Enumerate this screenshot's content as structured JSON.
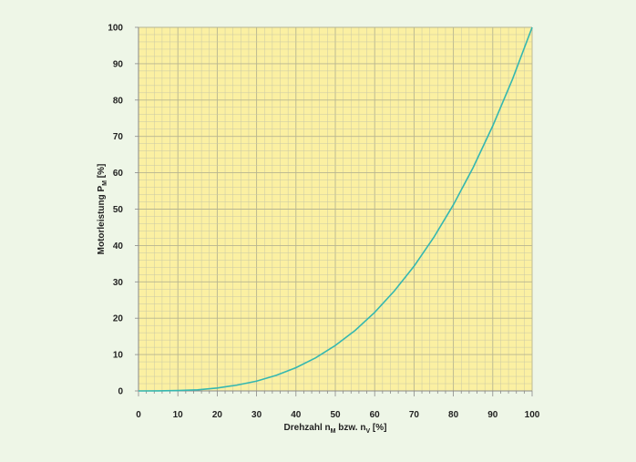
{
  "chart_data": {
    "type": "line",
    "title": "",
    "xlabel": {
      "main": "Drehzahl n",
      "sub1": "M",
      "mid": " bzw. n",
      "sub2": "V",
      "end": " [%]"
    },
    "ylabel": {
      "main": "Motorleistung P",
      "sub": "M",
      "end": " [%]"
    },
    "xlim": [
      0,
      100
    ],
    "ylim": [
      0,
      100
    ],
    "xticks": [
      0,
      10,
      20,
      30,
      40,
      50,
      60,
      70,
      80,
      90,
      100
    ],
    "yticks": [
      0,
      10,
      20,
      30,
      40,
      50,
      60,
      70,
      80,
      90,
      100
    ],
    "grid": true,
    "series": [
      {
        "x": [
          0,
          5,
          10,
          15,
          20,
          25,
          30,
          35,
          40,
          45,
          50,
          55,
          60,
          65,
          70,
          75,
          80,
          85,
          90,
          95,
          100
        ],
        "y": [
          0,
          0.01,
          0.1,
          0.3,
          0.8,
          1.6,
          2.7,
          4.3,
          6.4,
          9.1,
          12.5,
          16.6,
          21.6,
          27.5,
          34.3,
          42.2,
          51.2,
          61.4,
          72.9,
          85.7,
          100
        ]
      }
    ],
    "colors": {
      "plot_background": "#fbf0a2",
      "grid": "#c9c8a6",
      "grid_major": "#b7b590",
      "line": "#35b7b0",
      "axis": "#8a8a8a"
    }
  }
}
